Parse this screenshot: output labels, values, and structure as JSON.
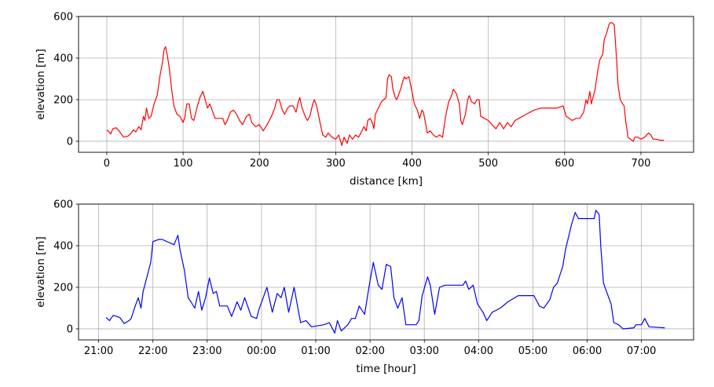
{
  "chart_data": [
    {
      "type": "line",
      "title": "",
      "xlabel": "distance [km]",
      "ylabel": "elevation [m]",
      "xlim": [
        -37,
        769
      ],
      "ylim": [
        -53,
        600
      ],
      "grid": true,
      "color": "#ff0000",
      "xticks": [
        0,
        100,
        200,
        300,
        400,
        500,
        600,
        700
      ],
      "xtick_labels": [
        "0",
        "100",
        "200",
        "300",
        "400",
        "500",
        "600",
        "700"
      ],
      "yticks": [
        0,
        200,
        400,
        600
      ],
      "ytick_labels": [
        "0",
        "200",
        "400",
        "600"
      ],
      "x": [
        0,
        3,
        5,
        8,
        12,
        15,
        18,
        22,
        28,
        32,
        35,
        38,
        42,
        45,
        48,
        50,
        52,
        55,
        58,
        62,
        66,
        70,
        73,
        75,
        77,
        79,
        82,
        85,
        88,
        92,
        96,
        100,
        102,
        105,
        108,
        111,
        114,
        118,
        122,
        126,
        129,
        132,
        135,
        138,
        142,
        148,
        152,
        155,
        158,
        162,
        166,
        170,
        174,
        178,
        183,
        187,
        190,
        195,
        200,
        205,
        210,
        213,
        217,
        220,
        223,
        226,
        230,
        233,
        237,
        240,
        244,
        248,
        251,
        253,
        256,
        260,
        263,
        266,
        270,
        272,
        275,
        280,
        283,
        287,
        290,
        295,
        300,
        304,
        308,
        311,
        315,
        318,
        322,
        326,
        330,
        333,
        337,
        340,
        342,
        345,
        348,
        350,
        352,
        356,
        360,
        363,
        366,
        368,
        370,
        373,
        375,
        378,
        380,
        385,
        388,
        390,
        392,
        396,
        400,
        403,
        407,
        410,
        413,
        415,
        420,
        424,
        428,
        432,
        436,
        440,
        444,
        448,
        452,
        454,
        458,
        462,
        464,
        466,
        470,
        473,
        475,
        478,
        482,
        485,
        488,
        490,
        495,
        500,
        505,
        510,
        515,
        520,
        525,
        530,
        535,
        540,
        550,
        560,
        570,
        580,
        590,
        598,
        602,
        606,
        610,
        615,
        620,
        625,
        628,
        630,
        633,
        635,
        640,
        643,
        646,
        650,
        652,
        655,
        658,
        660,
        662,
        665,
        668,
        670,
        673,
        676,
        678,
        680,
        683,
        686,
        690,
        692,
        696,
        700,
        705,
        710,
        713,
        716,
        720,
        725,
        730
      ],
      "y": [
        55,
        45,
        35,
        60,
        65,
        55,
        40,
        20,
        25,
        40,
        55,
        45,
        70,
        55,
        120,
        100,
        160,
        110,
        120,
        180,
        220,
        320,
        380,
        440,
        455,
        420,
        350,
        250,
        170,
        130,
        120,
        90,
        110,
        180,
        180,
        110,
        100,
        160,
        210,
        240,
        200,
        160,
        180,
        150,
        110,
        110,
        110,
        80,
        100,
        140,
        150,
        130,
        100,
        80,
        120,
        130,
        90,
        70,
        80,
        50,
        80,
        100,
        130,
        160,
        200,
        200,
        150,
        130,
        160,
        170,
        170,
        140,
        190,
        210,
        160,
        120,
        100,
        120,
        180,
        200,
        170,
        80,
        30,
        20,
        40,
        20,
        10,
        30,
        -20,
        20,
        -10,
        30,
        10,
        30,
        20,
        40,
        70,
        50,
        100,
        110,
        90,
        60,
        130,
        160,
        190,
        200,
        210,
        300,
        320,
        310,
        250,
        210,
        200,
        250,
        290,
        310,
        300,
        310,
        240,
        180,
        150,
        110,
        150,
        140,
        40,
        50,
        30,
        20,
        30,
        20,
        120,
        190,
        220,
        250,
        230,
        180,
        100,
        80,
        130,
        200,
        220,
        190,
        180,
        200,
        200,
        120,
        110,
        100,
        80,
        60,
        90,
        60,
        90,
        70,
        100,
        110,
        130,
        150,
        160,
        160,
        160,
        170,
        120,
        110,
        100,
        110,
        110,
        140,
        200,
        180,
        240,
        180,
        250,
        330,
        390,
        420,
        490,
        520,
        560,
        570,
        570,
        560,
        400,
        270,
        200,
        180,
        170,
        100,
        20,
        10,
        0,
        20,
        20,
        10,
        20,
        40,
        30,
        10,
        10,
        5,
        5
      ]
    },
    {
      "type": "line",
      "title": "",
      "xlabel": "time [hour]",
      "ylabel": "elevation [m]",
      "x_unit": "hours since 00:00 of first day",
      "xlim": [
        20.63,
        31.96
      ],
      "ylim": [
        -53,
        600
      ],
      "grid": true,
      "color": "#0000ff",
      "xticks": [
        21,
        22,
        23,
        24,
        25,
        26,
        27,
        28,
        29,
        30,
        31
      ],
      "xtick_labels": [
        "21:00",
        "22:00",
        "23:00",
        "00:00",
        "01:00",
        "02:00",
        "03:00",
        "04:00",
        "05:00",
        "06:00",
        "07:00"
      ],
      "yticks": [
        0,
        200,
        400,
        600
      ],
      "ytick_labels": [
        "0",
        "200",
        "400",
        "600"
      ],
      "x": [
        21.14,
        21.2,
        21.27,
        21.39,
        21.47,
        21.56,
        21.6,
        21.66,
        21.73,
        21.78,
        21.82,
        21.9,
        21.96,
        22.0,
        22.11,
        22.17,
        22.39,
        22.46,
        22.5,
        22.58,
        22.65,
        22.7,
        22.77,
        22.84,
        22.9,
        22.97,
        23.04,
        23.11,
        23.17,
        23.23,
        23.37,
        23.45,
        23.55,
        23.62,
        23.69,
        23.81,
        23.91,
        23.95,
        24.1,
        24.2,
        24.29,
        24.36,
        24.42,
        24.5,
        24.6,
        24.72,
        24.82,
        24.92,
        25.15,
        25.25,
        25.35,
        25.4,
        25.47,
        25.59,
        25.66,
        25.73,
        25.8,
        25.9,
        25.98,
        26.06,
        26.15,
        26.22,
        26.3,
        26.38,
        26.44,
        26.51,
        26.59,
        26.66,
        26.85,
        26.9,
        26.96,
        27.06,
        27.11,
        27.19,
        27.28,
        27.38,
        27.71,
        27.76,
        27.82,
        27.9,
        27.98,
        28.08,
        28.15,
        28.25,
        28.4,
        28.54,
        28.73,
        29.02,
        29.12,
        29.2,
        29.31,
        29.38,
        29.45,
        29.55,
        29.6,
        29.71,
        29.78,
        29.84,
        30.13,
        30.16,
        30.22,
        30.25,
        30.3,
        30.37,
        30.44,
        30.49,
        30.58,
        30.66,
        30.86,
        30.9,
        31.0,
        31.06,
        31.14,
        31.43
      ],
      "y": [
        55,
        40,
        65,
        55,
        25,
        40,
        50,
        100,
        150,
        100,
        180,
        260,
        320,
        420,
        430,
        430,
        405,
        450,
        380,
        280,
        150,
        130,
        100,
        180,
        90,
        150,
        245,
        170,
        180,
        110,
        110,
        60,
        130,
        90,
        150,
        60,
        50,
        90,
        200,
        80,
        170,
        150,
        200,
        80,
        200,
        30,
        40,
        10,
        20,
        30,
        -20,
        40,
        -10,
        20,
        50,
        50,
        110,
        70,
        200,
        320,
        210,
        190,
        310,
        300,
        150,
        100,
        150,
        20,
        20,
        40,
        160,
        250,
        210,
        70,
        200,
        210,
        210,
        230,
        190,
        210,
        120,
        80,
        40,
        80,
        100,
        130,
        160,
        160,
        110,
        100,
        140,
        200,
        220,
        300,
        380,
        500,
        560,
        530,
        530,
        570,
        550,
        400,
        220,
        170,
        120,
        30,
        20,
        0,
        5,
        20,
        20,
        50,
        10,
        5
      ]
    }
  ]
}
